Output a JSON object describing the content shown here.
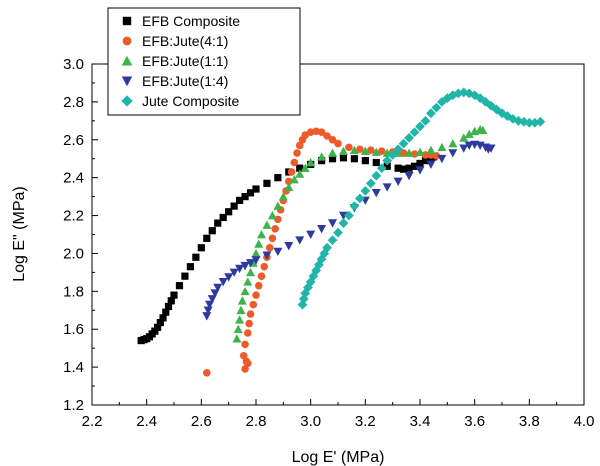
{
  "chart_data": {
    "type": "scatter",
    "xlabel": "Log E' (MPa)",
    "ylabel": "Log E\" (MPa)",
    "xlim": [
      2.2,
      4.0
    ],
    "ylim": [
      1.2,
      3.0
    ],
    "x_ticks": [
      "2.2",
      "2.4",
      "2.6",
      "2.8",
      "3.0",
      "3.2",
      "3.4",
      "3.6",
      "3.8",
      "4.0"
    ],
    "y_ticks": [
      "1.2",
      "1.4",
      "1.6",
      "1.8",
      "2.0",
      "2.2",
      "2.4",
      "2.6",
      "2.8",
      "3.0"
    ],
    "grid": false,
    "legend_position": "top-left",
    "series": [
      {
        "name": "EFB Composite",
        "marker": "square",
        "color": "#000000",
        "points": [
          [
            2.38,
            1.54
          ],
          [
            2.39,
            1.545
          ],
          [
            2.4,
            1.55
          ],
          [
            2.41,
            1.56
          ],
          [
            2.42,
            1.575
          ],
          [
            2.43,
            1.59
          ],
          [
            2.44,
            1.61
          ],
          [
            2.45,
            1.635
          ],
          [
            2.46,
            1.66
          ],
          [
            2.47,
            1.69
          ],
          [
            2.48,
            1.72
          ],
          [
            2.49,
            1.75
          ],
          [
            2.5,
            1.78
          ],
          [
            2.52,
            1.83
          ],
          [
            2.54,
            1.88
          ],
          [
            2.56,
            1.93
          ],
          [
            2.58,
            1.98
          ],
          [
            2.6,
            2.03
          ],
          [
            2.62,
            2.08
          ],
          [
            2.64,
            2.12
          ],
          [
            2.66,
            2.16
          ],
          [
            2.68,
            2.19
          ],
          [
            2.7,
            2.22
          ],
          [
            2.72,
            2.25
          ],
          [
            2.74,
            2.28
          ],
          [
            2.76,
            2.3
          ],
          [
            2.78,
            2.32
          ],
          [
            2.8,
            2.34
          ],
          [
            2.84,
            2.37
          ],
          [
            2.88,
            2.4
          ],
          [
            2.92,
            2.43
          ],
          [
            2.96,
            2.45
          ],
          [
            3.0,
            2.47
          ],
          [
            3.04,
            2.49
          ],
          [
            3.08,
            2.5
          ],
          [
            3.12,
            2.505
          ],
          [
            3.16,
            2.5
          ],
          [
            3.2,
            2.49
          ],
          [
            3.24,
            2.48
          ],
          [
            3.28,
            2.46
          ],
          [
            3.32,
            2.45
          ],
          [
            3.34,
            2.445
          ],
          [
            3.36,
            2.45
          ],
          [
            3.38,
            2.46
          ],
          [
            3.4,
            2.475
          ],
          [
            3.42,
            2.49
          ],
          [
            3.44,
            2.5
          ],
          [
            3.45,
            2.51
          ]
        ]
      },
      {
        "name": "EFB:Jute(4:1)",
        "marker": "circle",
        "color": "#f05a28",
        "points": [
          [
            2.62,
            1.37
          ],
          [
            2.76,
            1.39
          ],
          [
            2.765,
            1.43
          ],
          [
            2.77,
            1.42
          ],
          [
            2.755,
            1.46
          ],
          [
            2.76,
            1.52
          ],
          [
            2.77,
            1.58
          ],
          [
            2.775,
            1.63
          ],
          [
            2.78,
            1.68
          ],
          [
            2.79,
            1.73
          ],
          [
            2.8,
            1.78
          ],
          [
            2.81,
            1.83
          ],
          [
            2.82,
            1.88
          ],
          [
            2.83,
            1.93
          ],
          [
            2.84,
            1.98
          ],
          [
            2.85,
            2.03
          ],
          [
            2.86,
            2.08
          ],
          [
            2.87,
            2.13
          ],
          [
            2.88,
            2.18
          ],
          [
            2.89,
            2.23
          ],
          [
            2.9,
            2.28
          ],
          [
            2.91,
            2.33
          ],
          [
            2.92,
            2.38
          ],
          [
            2.93,
            2.43
          ],
          [
            2.94,
            2.48
          ],
          [
            2.95,
            2.53
          ],
          [
            2.96,
            2.57
          ],
          [
            2.97,
            2.6
          ],
          [
            2.98,
            2.625
          ],
          [
            3.0,
            2.64
          ],
          [
            3.02,
            2.645
          ],
          [
            3.04,
            2.64
          ],
          [
            3.06,
            2.62
          ],
          [
            3.08,
            2.6
          ],
          [
            3.1,
            2.58
          ],
          [
            3.14,
            2.56
          ],
          [
            3.18,
            2.55
          ],
          [
            3.22,
            2.545
          ],
          [
            3.26,
            2.54
          ],
          [
            3.3,
            2.535
          ],
          [
            3.34,
            2.53
          ],
          [
            3.38,
            2.525
          ],
          [
            3.42,
            2.52
          ],
          [
            3.44,
            2.52
          ],
          [
            3.46,
            2.515
          ]
        ]
      },
      {
        "name": "EFB:Jute(1:1)",
        "marker": "triangle-up",
        "color": "#3cb44b",
        "points": [
          [
            2.73,
            1.55
          ],
          [
            2.735,
            1.6
          ],
          [
            2.74,
            1.65
          ],
          [
            2.745,
            1.7
          ],
          [
            2.75,
            1.75
          ],
          [
            2.76,
            1.8
          ],
          [
            2.77,
            1.85
          ],
          [
            2.78,
            1.9
          ],
          [
            2.79,
            1.95
          ],
          [
            2.8,
            2.0
          ],
          [
            2.81,
            2.05
          ],
          [
            2.82,
            2.1
          ],
          [
            2.84,
            2.15
          ],
          [
            2.86,
            2.2
          ],
          [
            2.88,
            2.25
          ],
          [
            2.9,
            2.3
          ],
          [
            2.92,
            2.35
          ],
          [
            2.94,
            2.39
          ],
          [
            2.96,
            2.42
          ],
          [
            2.98,
            2.45
          ],
          [
            3.0,
            2.48
          ],
          [
            3.04,
            2.51
          ],
          [
            3.08,
            2.53
          ],
          [
            3.12,
            2.54
          ],
          [
            3.16,
            2.545
          ],
          [
            3.2,
            2.54
          ],
          [
            3.24,
            2.535
          ],
          [
            3.28,
            2.53
          ],
          [
            3.32,
            2.53
          ],
          [
            3.36,
            2.53
          ],
          [
            3.4,
            2.535
          ],
          [
            3.44,
            2.545
          ],
          [
            3.48,
            2.56
          ],
          [
            3.52,
            2.58
          ],
          [
            3.56,
            2.61
          ],
          [
            3.58,
            2.63
          ],
          [
            3.6,
            2.645
          ],
          [
            3.62,
            2.655
          ],
          [
            3.63,
            2.65
          ]
        ]
      },
      {
        "name": "EFB:Jute(1:4)",
        "marker": "triangle-down",
        "color": "#2e3a9e",
        "points": [
          [
            2.62,
            1.67
          ],
          [
            2.625,
            1.7
          ],
          [
            2.63,
            1.73
          ],
          [
            2.64,
            1.76
          ],
          [
            2.65,
            1.79
          ],
          [
            2.66,
            1.82
          ],
          [
            2.68,
            1.85
          ],
          [
            2.7,
            1.875
          ],
          [
            2.72,
            1.9
          ],
          [
            2.74,
            1.92
          ],
          [
            2.76,
            1.935
          ],
          [
            2.78,
            1.95
          ],
          [
            2.8,
            1.965
          ],
          [
            2.84,
            1.99
          ],
          [
            2.88,
            2.01
          ],
          [
            2.92,
            2.04
          ],
          [
            2.96,
            2.07
          ],
          [
            3.0,
            2.1
          ],
          [
            3.04,
            2.13
          ],
          [
            3.08,
            2.16
          ],
          [
            3.12,
            2.2
          ],
          [
            3.16,
            2.24
          ],
          [
            3.2,
            2.28
          ],
          [
            3.24,
            2.32
          ],
          [
            3.28,
            2.35
          ],
          [
            3.32,
            2.38
          ],
          [
            3.36,
            2.41
          ],
          [
            3.4,
            2.44
          ],
          [
            3.44,
            2.47
          ],
          [
            3.48,
            2.5
          ],
          [
            3.52,
            2.53
          ],
          [
            3.56,
            2.555
          ],
          [
            3.58,
            2.57
          ],
          [
            3.6,
            2.575
          ],
          [
            3.62,
            2.57
          ],
          [
            3.64,
            2.56
          ],
          [
            3.65,
            2.55
          ],
          [
            3.66,
            2.555
          ]
        ]
      },
      {
        "name": "Jute Composite",
        "marker": "diamond",
        "color": "#1fb5a8",
        "points": [
          [
            2.97,
            1.73
          ],
          [
            2.975,
            1.76
          ],
          [
            2.98,
            1.79
          ],
          [
            2.99,
            1.82
          ],
          [
            3.0,
            1.85
          ],
          [
            3.01,
            1.88
          ],
          [
            3.02,
            1.91
          ],
          [
            3.03,
            1.94
          ],
          [
            3.04,
            1.97
          ],
          [
            3.05,
            2.0
          ],
          [
            3.06,
            2.03
          ],
          [
            3.08,
            2.07
          ],
          [
            3.1,
            2.11
          ],
          [
            3.12,
            2.16
          ],
          [
            3.14,
            2.2
          ],
          [
            3.16,
            2.25
          ],
          [
            3.18,
            2.29
          ],
          [
            3.2,
            2.33
          ],
          [
            3.22,
            2.37
          ],
          [
            3.24,
            2.41
          ],
          [
            3.26,
            2.45
          ],
          [
            3.28,
            2.49
          ],
          [
            3.3,
            2.52
          ],
          [
            3.32,
            2.55
          ],
          [
            3.34,
            2.58
          ],
          [
            3.36,
            2.61
          ],
          [
            3.38,
            2.64
          ],
          [
            3.4,
            2.67
          ],
          [
            3.42,
            2.7
          ],
          [
            3.44,
            2.74
          ],
          [
            3.46,
            2.77
          ],
          [
            3.48,
            2.8
          ],
          [
            3.5,
            2.82
          ],
          [
            3.52,
            2.835
          ],
          [
            3.54,
            2.845
          ],
          [
            3.56,
            2.85
          ],
          [
            3.58,
            2.845
          ],
          [
            3.6,
            2.835
          ],
          [
            3.62,
            2.82
          ],
          [
            3.64,
            2.8
          ],
          [
            3.66,
            2.78
          ],
          [
            3.68,
            2.76
          ],
          [
            3.7,
            2.74
          ],
          [
            3.72,
            2.725
          ],
          [
            3.74,
            2.71
          ],
          [
            3.76,
            2.7
          ],
          [
            3.78,
            2.695
          ],
          [
            3.8,
            2.69
          ],
          [
            3.82,
            2.69
          ],
          [
            3.84,
            2.695
          ]
        ]
      }
    ]
  }
}
